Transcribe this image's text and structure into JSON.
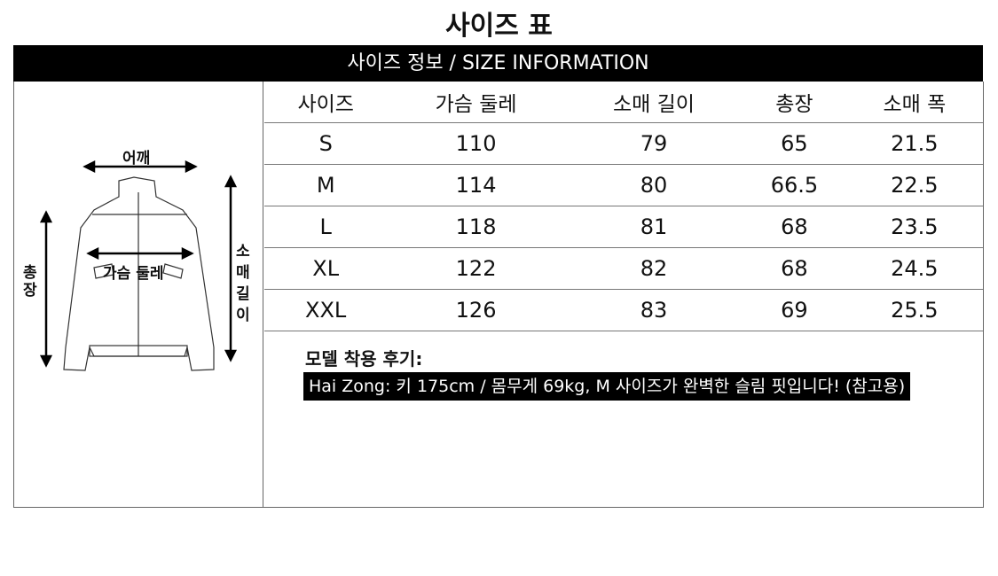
{
  "title": "사이즈 표",
  "header_bar": "사이즈 정보 / SIZE INFORMATION",
  "diagram": {
    "shoulder": "어깨",
    "chest": "가슴 둘레",
    "length": "총장",
    "sleeve": "소매 길이"
  },
  "table": {
    "headers": [
      "사이즈",
      "가슴 둘레",
      "소매 길이",
      "총장",
      "소매 폭"
    ],
    "rows": [
      [
        "S",
        "110",
        "79",
        "65",
        "21.5"
      ],
      [
        "M",
        "114",
        "80",
        "66.5",
        "22.5"
      ],
      [
        "L",
        "118",
        "81",
        "68",
        "23.5"
      ],
      [
        "XL",
        "122",
        "82",
        "68",
        "24.5"
      ],
      [
        "XXL",
        "126",
        "83",
        "69",
        "25.5"
      ]
    ]
  },
  "review": {
    "heading": "모델 착용 후기:",
    "text": "Hai Zong: 키 175cm / 몸무게 69kg, M 사이즈가 완벽한 슬림 핏입니다! (참고용)"
  }
}
